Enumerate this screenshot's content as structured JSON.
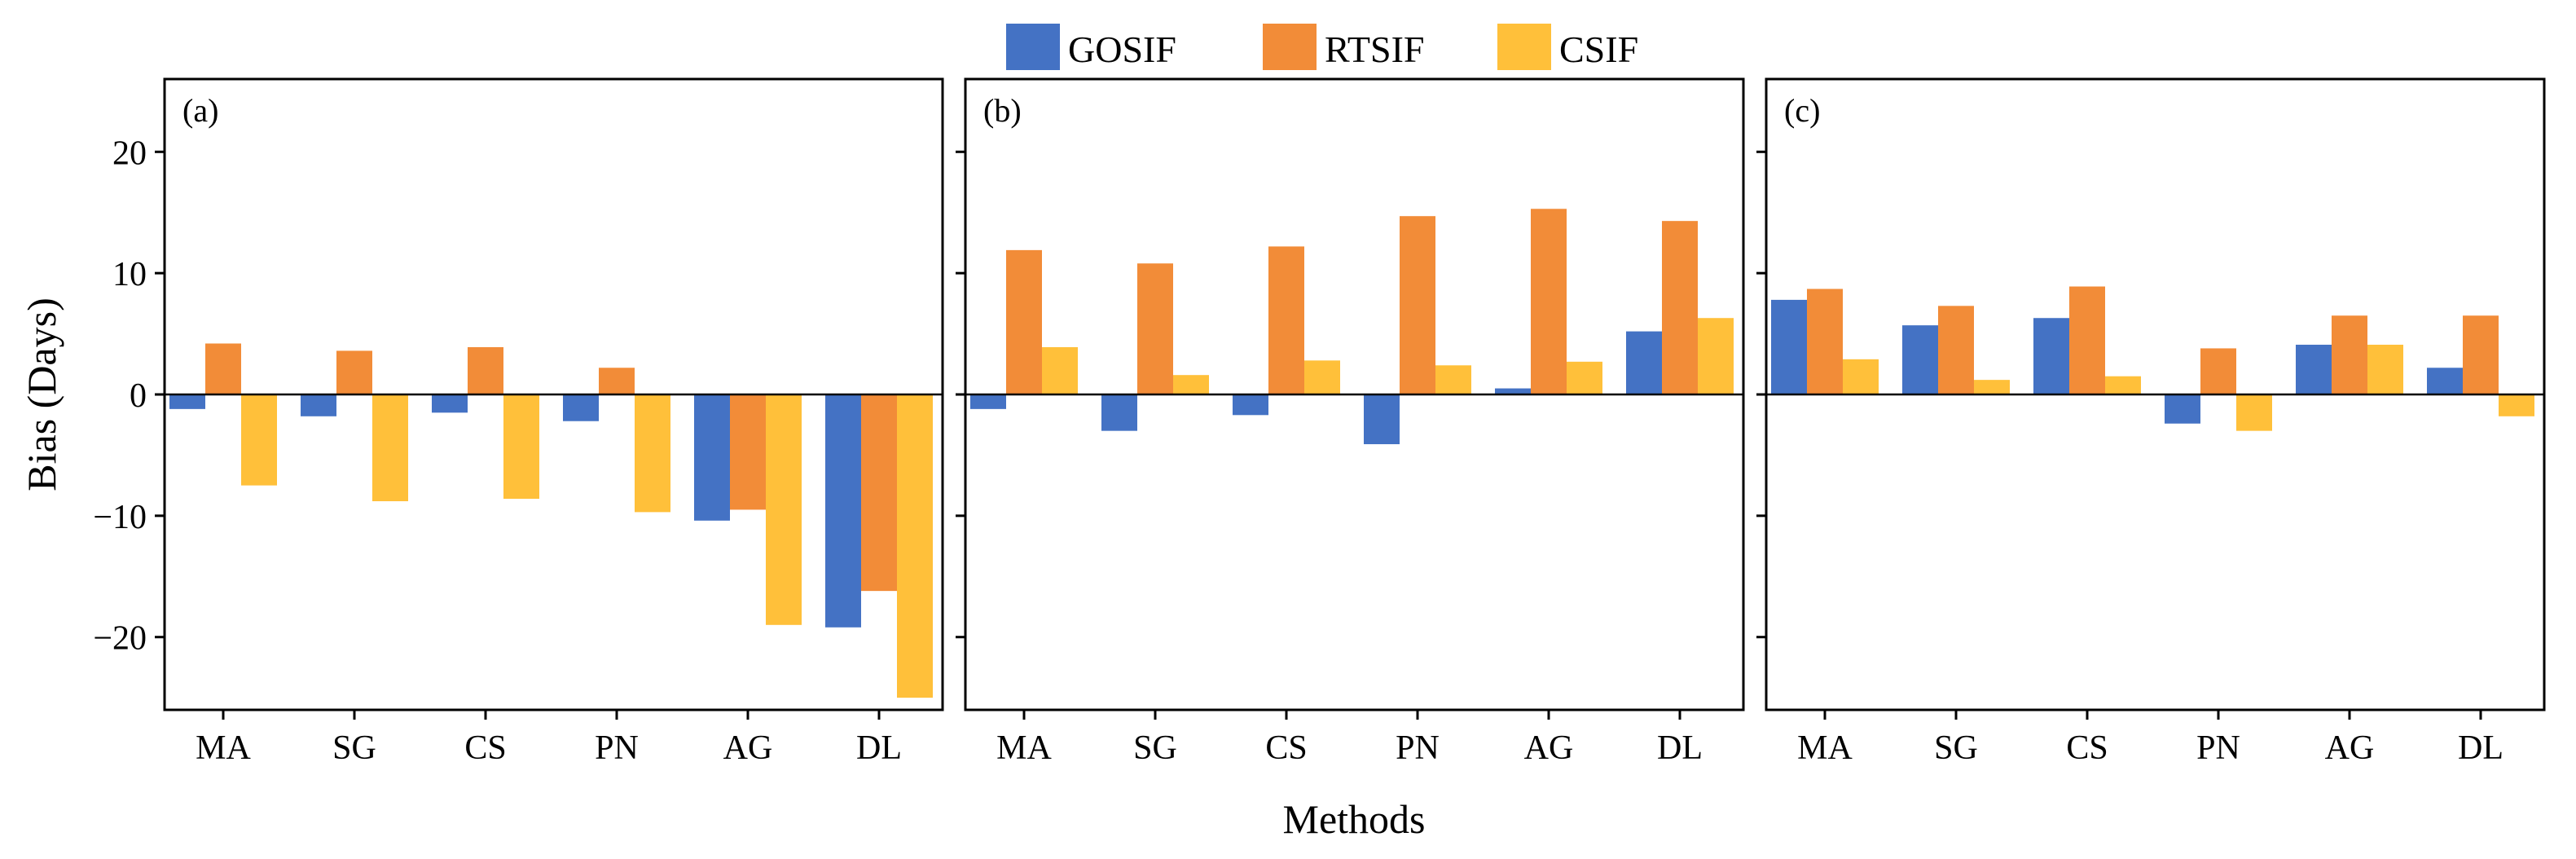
{
  "chart_data": {
    "type": "bar",
    "ylabel": "Bias (Days)",
    "xlabel": "Methods",
    "ylim": [
      -26,
      26
    ],
    "yticks": [
      -20,
      -10,
      0,
      10,
      20
    ],
    "ytick_labels": [
      "−20",
      "−10",
      "0",
      "10",
      "20"
    ],
    "categories": [
      "MA",
      "SG",
      "CS",
      "PN",
      "AG",
      "DL"
    ],
    "legend": {
      "placement": "top-center",
      "entries": [
        "GOSIF",
        "RTSIF",
        "CSIF"
      ]
    },
    "colors": {
      "GOSIF": "#4472C4",
      "RTSIF": "#F28C38",
      "CSIF": "#FFC03A"
    },
    "panels": [
      {
        "label": "(a)",
        "series": [
          {
            "name": "GOSIF",
            "values": [
              -1.2,
              -1.8,
              -1.5,
              -2.2,
              -10.4,
              -19.2
            ]
          },
          {
            "name": "RTSIF",
            "values": [
              4.2,
              3.6,
              3.9,
              2.2,
              -9.5,
              -16.2
            ]
          },
          {
            "name": "CSIF",
            "values": [
              -7.5,
              -8.8,
              -8.6,
              -9.7,
              -19.0,
              -25.0
            ]
          }
        ]
      },
      {
        "label": "(b)",
        "series": [
          {
            "name": "GOSIF",
            "values": [
              -1.2,
              -3.0,
              -1.7,
              -4.1,
              0.5,
              5.2
            ]
          },
          {
            "name": "RTSIF",
            "values": [
              11.9,
              10.8,
              12.2,
              14.7,
              15.3,
              14.3
            ]
          },
          {
            "name": "CSIF",
            "values": [
              3.9,
              1.6,
              2.8,
              2.4,
              2.7,
              6.3
            ]
          }
        ]
      },
      {
        "label": "(c)",
        "series": [
          {
            "name": "GOSIF",
            "values": [
              7.8,
              5.7,
              6.3,
              -2.4,
              4.1,
              2.2
            ]
          },
          {
            "name": "RTSIF",
            "values": [
              8.7,
              7.3,
              8.9,
              3.8,
              6.5,
              6.5
            ]
          },
          {
            "name": "CSIF",
            "values": [
              2.9,
              1.2,
              1.5,
              -3.0,
              4.1,
              -1.8
            ]
          }
        ]
      }
    ]
  }
}
